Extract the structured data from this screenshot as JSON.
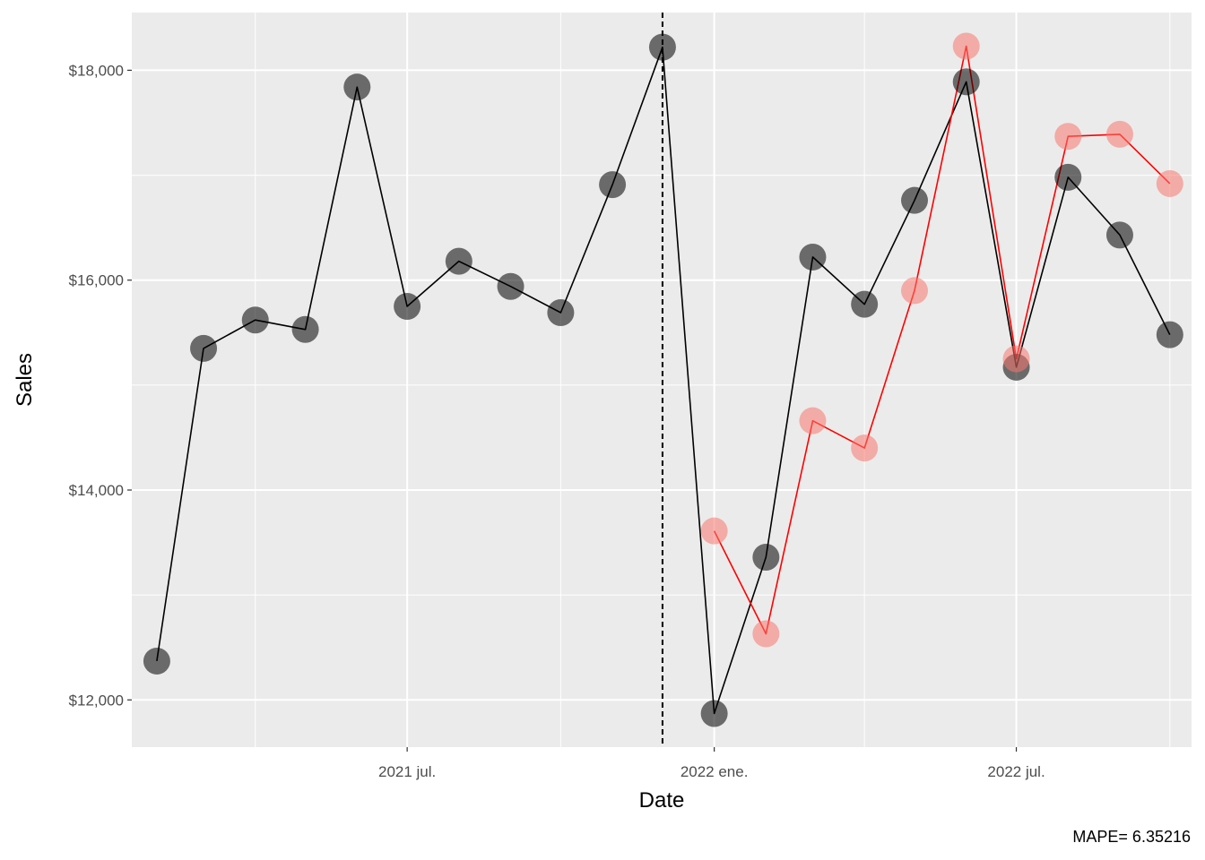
{
  "chart_data": {
    "type": "line",
    "xlabel": "Date",
    "ylabel": "Sales",
    "caption": "MAPE= 6.35216",
    "ylim": [
      11550,
      18550
    ],
    "xlim": [
      "2021-01-17",
      "2022-10-14"
    ],
    "y_ticks": [
      {
        "value": 12000,
        "label": "$12,000"
      },
      {
        "value": 14000,
        "label": "$14,000"
      },
      {
        "value": 16000,
        "label": "$16,000"
      },
      {
        "value": 18000,
        "label": "$18,000"
      }
    ],
    "x_ticks": [
      {
        "date": "2021-07-01",
        "label": "2021 jul."
      },
      {
        "date": "2022-01-01",
        "label": "2022 ene."
      },
      {
        "date": "2022-07-01",
        "label": "2022 jul."
      }
    ],
    "x_minor": [
      "2021-04-01",
      "2021-10-01",
      "2022-04-01",
      "2022-10-01"
    ],
    "vline": "2021-12-01",
    "grid": true,
    "series": [
      {
        "color": "#000000",
        "point_color": "#000000",
        "x": [
          "2021-02-01",
          "2021-03-01",
          "2021-04-01",
          "2021-05-01",
          "2021-06-01",
          "2021-07-01",
          "2021-08-01",
          "2021-09-01",
          "2021-10-01",
          "2021-11-01",
          "2021-12-01",
          "2022-01-01",
          "2022-02-01",
          "2022-03-01",
          "2022-04-01",
          "2022-05-01",
          "2022-06-01",
          "2022-07-01",
          "2022-08-01",
          "2022-09-01",
          "2022-10-01"
        ],
        "values": [
          12370,
          15350,
          15620,
          15530,
          17840,
          15750,
          16180,
          15940,
          15690,
          16910,
          18220,
          11870,
          13360,
          16220,
          15770,
          16760,
          17890,
          15170,
          16980,
          16430,
          15480
        ]
      },
      {
        "color": "#ff0000",
        "point_color": "#f8766d",
        "x": [
          "2022-01-01",
          "2022-02-01",
          "2022-03-01",
          "2022-04-01",
          "2022-05-01",
          "2022-06-01",
          "2022-07-01",
          "2022-08-01",
          "2022-09-01",
          "2022-10-01"
        ],
        "values": [
          13610,
          12630,
          14660,
          14400,
          15900,
          18230,
          15250,
          17370,
          17390,
          16920
        ]
      }
    ]
  }
}
